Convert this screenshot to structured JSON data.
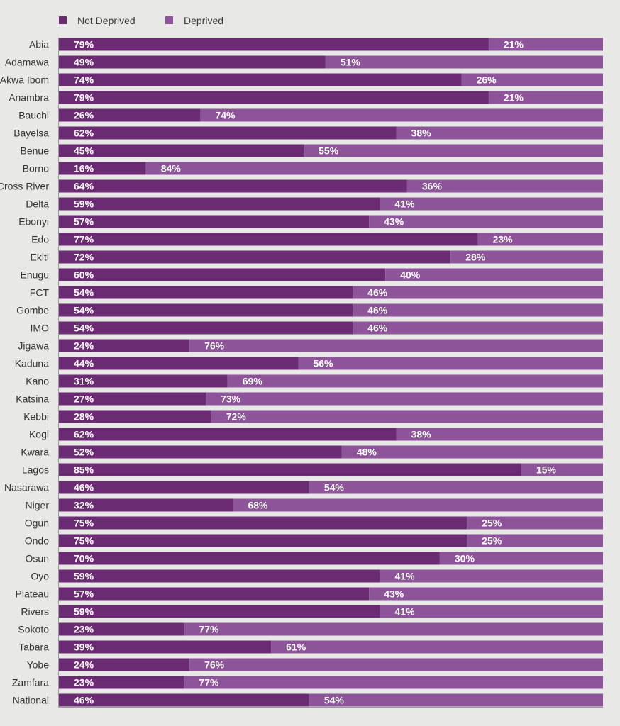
{
  "colors": {
    "not_deprived": "#6b2b72",
    "deprived": "#8e549a",
    "background": "#e8e8e6",
    "axis": "#9b9b9b"
  },
  "chart_data": {
    "type": "bar",
    "orientation": "horizontal",
    "stacked": true,
    "title": "",
    "xlabel": "",
    "ylabel": "",
    "xlim": [
      0,
      100
    ],
    "legend_position": "top-left",
    "grid": false,
    "categories": [
      "Abia",
      "Adamawa",
      "Akwa Ibom",
      "Anambra",
      "Bauchi",
      "Bayelsa",
      "Benue",
      "Borno",
      "Cross River",
      "Delta",
      "Ebonyi",
      "Edo",
      "Ekiti",
      "Enugu",
      "FCT",
      "Gombe",
      "IMO",
      "Jigawa",
      "Kaduna",
      "Kano",
      "Katsina",
      "Kebbi",
      "Kogi",
      "Kwara",
      "Lagos",
      "Nasarawa",
      "Niger",
      "Ogun",
      "Ondo",
      "Osun",
      "Oyo",
      "Plateau",
      "Rivers",
      "Sokoto",
      "Tabara",
      "Yobe",
      "Zamfara",
      "National"
    ],
    "series": [
      {
        "name": "Not Deprived",
        "color": "#6b2b72",
        "values": [
          79,
          49,
          74,
          79,
          26,
          62,
          45,
          16,
          64,
          59,
          57,
          77,
          72,
          60,
          54,
          54,
          54,
          24,
          44,
          31,
          27,
          28,
          62,
          52,
          85,
          46,
          32,
          75,
          75,
          70,
          59,
          57,
          59,
          23,
          39,
          24,
          23,
          46
        ],
        "labels": [
          "79%",
          "49%",
          "74%",
          "79%",
          "26%",
          "62%",
          "45%",
          "16%",
          "64%",
          "59%",
          "57%",
          "77%",
          "72%",
          "60%",
          "54%",
          "54%",
          "54%",
          "24%",
          "44%",
          "31%",
          "27%",
          "28%",
          "62%",
          "52%",
          "85%",
          "46%",
          "32%",
          "75%",
          "75%",
          "70%",
          "59%",
          "57%",
          "59%",
          "23%",
          "39%",
          "24%",
          "23%",
          "46%"
        ]
      },
      {
        "name": "Deprived",
        "color": "#8e549a",
        "values": [
          21,
          51,
          26,
          21,
          74,
          38,
          55,
          84,
          36,
          41,
          43,
          23,
          28,
          40,
          46,
          46,
          46,
          76,
          56,
          69,
          73,
          72,
          38,
          48,
          15,
          54,
          68,
          25,
          25,
          30,
          41,
          43,
          41,
          77,
          61,
          76,
          77,
          54
        ],
        "labels": [
          "21%",
          "51%",
          "26%",
          "21%",
          "74%",
          "38%",
          "55%",
          "84%",
          "36%",
          "41%",
          "43%",
          "23%",
          "28%",
          "40%",
          "46%",
          "46%",
          "46%",
          "76%",
          "56%",
          "69%",
          "73%",
          "72%",
          "38%",
          "48%",
          "15%",
          "54%",
          "68%",
          "25%",
          "25%",
          "30%",
          "41%",
          "43%",
          "41%",
          "77%",
          "61%",
          "76%",
          "77%",
          "54%"
        ]
      }
    ]
  }
}
